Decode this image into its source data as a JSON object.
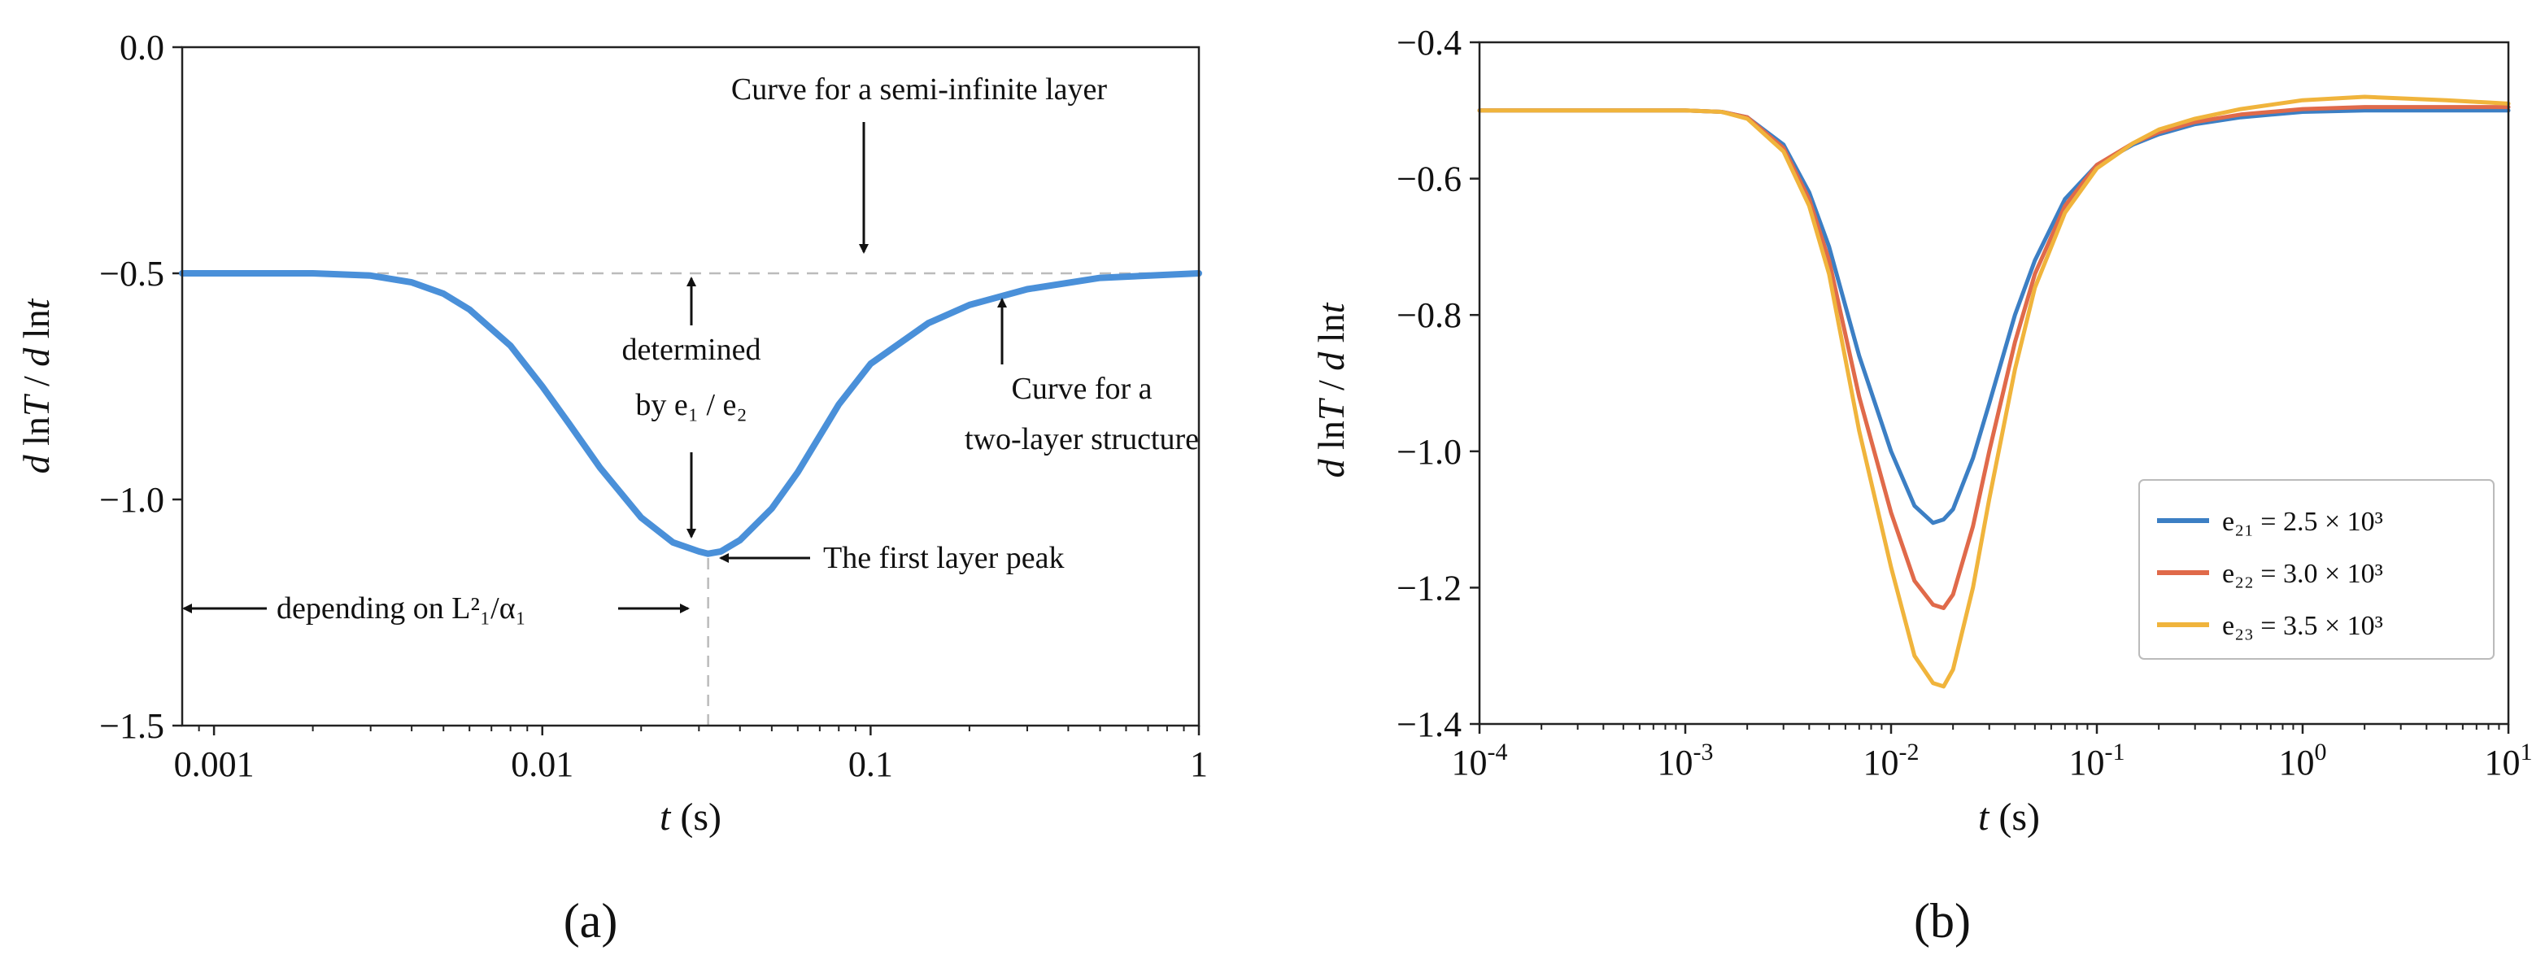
{
  "chart_data": [
    {
      "panel_label": "(a)",
      "type": "line",
      "x_scale": "log",
      "xlim": [
        0.0008,
        1
      ],
      "ylim": [
        -1.5,
        0
      ],
      "xlabel_italic": "t",
      "xlabel_rest": " (s)",
      "ylabel": "d lnT / d lnt",
      "x_ticks": [
        0.001,
        0.01,
        0.1,
        1
      ],
      "x_tick_labels": [
        "0.001",
        "0.01",
        "0.1",
        "1"
      ],
      "y_ticks": [
        0,
        -0.5,
        -1.0,
        -1.5
      ],
      "y_tick_labels": [
        "0.0",
        "−0.5",
        "−1.0",
        "−1.5"
      ],
      "grid": false,
      "color": "#4a90d9",
      "reference_level": -0.5,
      "peak": {
        "x": 0.032,
        "y": -1.12
      },
      "series": [
        {
          "x": [
            0.0008,
            0.002,
            0.003,
            0.004,
            0.005,
            0.006,
            0.008,
            0.01,
            0.012,
            0.015,
            0.02,
            0.025,
            0.03,
            0.032,
            0.035,
            0.04,
            0.05,
            0.06,
            0.08,
            0.1,
            0.15,
            0.2,
            0.3,
            0.5,
            1
          ],
          "values": [
            -0.5,
            -0.5,
            -0.505,
            -0.52,
            -0.545,
            -0.58,
            -0.66,
            -0.75,
            -0.83,
            -0.93,
            -1.04,
            -1.095,
            -1.115,
            -1.12,
            -1.115,
            -1.09,
            -1.02,
            -0.94,
            -0.79,
            -0.7,
            -0.61,
            -0.57,
            -0.535,
            -0.51,
            -0.5
          ]
        }
      ],
      "annotations": [
        {
          "text": "Curve for a semi-infinite layer"
        },
        {
          "text": "determined"
        },
        {
          "text": "by e₁ / e₂"
        },
        {
          "text": "Curve for a"
        },
        {
          "text": "two-layer structure"
        },
        {
          "text": "The first layer peak"
        },
        {
          "text": "depending on L²₁/α₁"
        }
      ]
    },
    {
      "panel_label": "(b)",
      "type": "line",
      "x_scale": "log",
      "xlim": [
        0.0001,
        10
      ],
      "ylim": [
        -1.4,
        -0.4
      ],
      "xlabel_italic": "t",
      "xlabel_rest": " (s)",
      "ylabel": "d lnT / d lnt",
      "x_ticks": [
        0.0001,
        0.001,
        0.01,
        0.1,
        1,
        10
      ],
      "x_tick_labels": [
        {
          "base": "10",
          "exp": "-4"
        },
        {
          "base": "10",
          "exp": "-3"
        },
        {
          "base": "10",
          "exp": "-2"
        },
        {
          "base": "10",
          "exp": "-1"
        },
        {
          "base": "10",
          "exp": "0"
        },
        {
          "base": "10",
          "exp": "1"
        }
      ],
      "y_ticks": [
        -0.4,
        -0.6,
        -0.8,
        -1.0,
        -1.2,
        -1.4
      ],
      "y_tick_labels": [
        "−0.4",
        "−0.6",
        "−0.8",
        "−1.0",
        "−1.2",
        "−1.4"
      ],
      "grid": false,
      "legend_position": "bottom-right",
      "series": [
        {
          "name": "e₂₁ = 2.5 × 10³",
          "color": "#3c7fc4",
          "x": [
            0.0001,
            0.001,
            0.0015,
            0.002,
            0.003,
            0.004,
            0.005,
            0.007,
            0.01,
            0.013,
            0.016,
            0.018,
            0.02,
            0.025,
            0.03,
            0.04,
            0.05,
            0.07,
            0.1,
            0.15,
            0.2,
            0.3,
            0.5,
            1,
            2,
            5,
            10
          ],
          "values": [
            -0.5,
            -0.5,
            -0.502,
            -0.51,
            -0.55,
            -0.62,
            -0.7,
            -0.86,
            -1.0,
            -1.08,
            -1.105,
            -1.1,
            -1.085,
            -1.01,
            -0.93,
            -0.8,
            -0.72,
            -0.63,
            -0.58,
            -0.55,
            -0.535,
            -0.52,
            -0.51,
            -0.502,
            -0.5,
            -0.5,
            -0.5
          ]
        },
        {
          "name": "e₂₂ = 3.0 × 10³",
          "color": "#e06a4a",
          "x": [
            0.0001,
            0.001,
            0.0015,
            0.002,
            0.003,
            0.004,
            0.005,
            0.007,
            0.01,
            0.013,
            0.016,
            0.018,
            0.02,
            0.025,
            0.03,
            0.04,
            0.05,
            0.07,
            0.1,
            0.15,
            0.2,
            0.3,
            0.5,
            1,
            2,
            5,
            10
          ],
          "values": [
            -0.5,
            -0.5,
            -0.502,
            -0.51,
            -0.555,
            -0.63,
            -0.72,
            -0.92,
            -1.09,
            -1.19,
            -1.225,
            -1.23,
            -1.21,
            -1.11,
            -1.0,
            -0.84,
            -0.74,
            -0.64,
            -0.58,
            -0.548,
            -0.532,
            -0.517,
            -0.506,
            -0.498,
            -0.495,
            -0.495,
            -0.495
          ]
        },
        {
          "name": "e₂₃ = 3.5 × 10³",
          "color": "#f0b43c",
          "x": [
            0.0001,
            0.001,
            0.0015,
            0.002,
            0.003,
            0.004,
            0.005,
            0.007,
            0.01,
            0.013,
            0.016,
            0.018,
            0.02,
            0.025,
            0.03,
            0.04,
            0.05,
            0.07,
            0.1,
            0.15,
            0.2,
            0.3,
            0.5,
            1,
            2,
            5,
            10
          ],
          "values": [
            -0.5,
            -0.5,
            -0.502,
            -0.512,
            -0.56,
            -0.64,
            -0.74,
            -0.97,
            -1.17,
            -1.3,
            -1.34,
            -1.345,
            -1.32,
            -1.2,
            -1.07,
            -0.88,
            -0.76,
            -0.65,
            -0.585,
            -0.548,
            -0.528,
            -0.512,
            -0.498,
            -0.485,
            -0.48,
            -0.485,
            -0.49
          ]
        }
      ]
    }
  ]
}
